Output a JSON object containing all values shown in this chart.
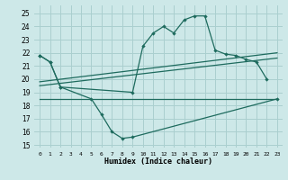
{
  "xlabel": "Humidex (Indice chaleur)",
  "background_color": "#cde8e8",
  "grid_color": "#aacfcf",
  "line_color": "#1e6b5e",
  "xlim": [
    -0.5,
    23.5
  ],
  "ylim": [
    14.8,
    25.6
  ],
  "yticks": [
    15,
    16,
    17,
    18,
    19,
    20,
    21,
    22,
    23,
    24,
    25
  ],
  "xticks": [
    0,
    1,
    2,
    3,
    4,
    5,
    6,
    7,
    8,
    9,
    10,
    11,
    12,
    13,
    14,
    15,
    16,
    17,
    18,
    19,
    20,
    21,
    22,
    23
  ],
  "upper_x": [
    0,
    1,
    2,
    9,
    10,
    11,
    12,
    13,
    14,
    15,
    16,
    17,
    18,
    19,
    20,
    21,
    22
  ],
  "upper_y": [
    21.8,
    21.3,
    19.4,
    19.0,
    22.5,
    23.5,
    24.0,
    23.5,
    24.5,
    24.8,
    24.8,
    22.2,
    21.9,
    21.8,
    21.5,
    21.3,
    20.0
  ],
  "lower_x": [
    0,
    1,
    2,
    5,
    6,
    7,
    8,
    9,
    23
  ],
  "lower_y": [
    21.8,
    21.3,
    19.4,
    18.5,
    17.3,
    16.0,
    15.5,
    15.6,
    18.5
  ],
  "trend1_x": [
    0,
    23
  ],
  "trend1_y": [
    19.8,
    22.0
  ],
  "trend2_x": [
    0,
    23
  ],
  "trend2_y": [
    19.5,
    21.6
  ],
  "hline_x": [
    0,
    23
  ],
  "hline_y": [
    18.5,
    18.5
  ]
}
